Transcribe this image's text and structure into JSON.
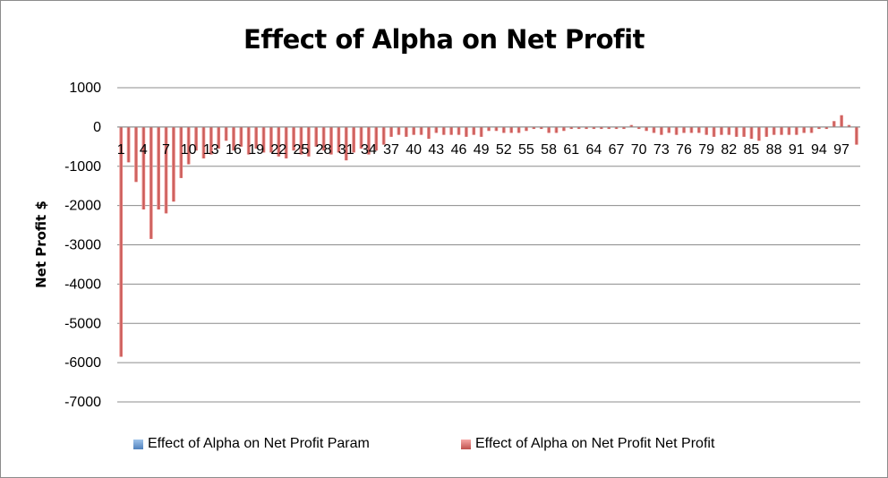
{
  "chart_data": {
    "type": "bar",
    "title": "Effect of Alpha on Net Profit",
    "ylabel": "Net Profit $",
    "xlabel": "",
    "ylim": [
      -7000,
      1000
    ],
    "yticks": [
      1000,
      0,
      -1000,
      -2000,
      -3000,
      -4000,
      -5000,
      -6000,
      -7000
    ],
    "categories": [
      1,
      2,
      3,
      4,
      5,
      6,
      7,
      8,
      9,
      10,
      11,
      12,
      13,
      14,
      15,
      16,
      17,
      18,
      19,
      20,
      21,
      22,
      23,
      24,
      25,
      26,
      27,
      28,
      29,
      30,
      31,
      32,
      33,
      34,
      35,
      36,
      37,
      38,
      39,
      40,
      41,
      42,
      43,
      44,
      45,
      46,
      47,
      48,
      49,
      50,
      51,
      52,
      53,
      54,
      55,
      56,
      57,
      58,
      59,
      60,
      61,
      62,
      63,
      64,
      65,
      66,
      67,
      68,
      69,
      70,
      71,
      72,
      73,
      74,
      75,
      76,
      77,
      78,
      79,
      80,
      81,
      82,
      83,
      84,
      85,
      86,
      87,
      88,
      89,
      90,
      91,
      92,
      93,
      94,
      95,
      96,
      97,
      98,
      99
    ],
    "xtick_labels": [
      "1",
      "4",
      "7",
      "10",
      "13",
      "16",
      "19",
      "22",
      "25",
      "28",
      "31",
      "34",
      "37",
      "40",
      "43",
      "46",
      "49",
      "52",
      "55",
      "58",
      "61",
      "64",
      "67",
      "70",
      "73",
      "76",
      "79",
      "82",
      "85",
      "88",
      "91",
      "94",
      "97"
    ],
    "grid": "horizontal",
    "legend_position": "bottom",
    "series": [
      {
        "name": "Effect of Alpha on Net Profit Param",
        "color": "#4f81bd",
        "values": [
          0.01,
          0.02,
          0.03,
          0.04,
          0.05,
          0.06,
          0.07,
          0.08,
          0.09,
          0.1,
          0.11,
          0.12,
          0.13,
          0.14,
          0.15,
          0.16,
          0.17,
          0.18,
          0.19,
          0.2,
          0.21,
          0.22,
          0.23,
          0.24,
          0.25,
          0.26,
          0.27,
          0.28,
          0.29,
          0.3,
          0.31,
          0.32,
          0.33,
          0.34,
          0.35,
          0.36,
          0.37,
          0.38,
          0.39,
          0.4,
          0.41,
          0.42,
          0.43,
          0.44,
          0.45,
          0.46,
          0.47,
          0.48,
          0.49,
          0.5,
          0.51,
          0.52,
          0.53,
          0.54,
          0.55,
          0.56,
          0.57,
          0.58,
          0.59,
          0.6,
          0.61,
          0.62,
          0.63,
          0.64,
          0.65,
          0.66,
          0.67,
          0.68,
          0.69,
          0.7,
          0.71,
          0.72,
          0.73,
          0.74,
          0.75,
          0.76,
          0.77,
          0.78,
          0.79,
          0.8,
          0.81,
          0.82,
          0.83,
          0.84,
          0.85,
          0.86,
          0.87,
          0.88,
          0.89,
          0.9,
          0.91,
          0.92,
          0.93,
          0.94,
          0.95,
          0.96,
          0.97,
          0.98,
          0.99
        ]
      },
      {
        "name": "Effect of Alpha on Net Profit Net Profit",
        "color": "#c0504d",
        "values": [
          -5850,
          -900,
          -1400,
          -2100,
          -2850,
          -2100,
          -2200,
          -1900,
          -1300,
          -950,
          -600,
          -800,
          -700,
          -550,
          -350,
          -600,
          -500,
          -700,
          -550,
          -650,
          -650,
          -750,
          -800,
          -600,
          -700,
          -750,
          -500,
          -600,
          -700,
          -650,
          -850,
          -650,
          -550,
          -700,
          -600,
          -450,
          -250,
          -200,
          -250,
          -200,
          -200,
          -300,
          -150,
          -200,
          -200,
          -200,
          -250,
          -200,
          -250,
          -100,
          -100,
          -150,
          -150,
          -150,
          -100,
          -50,
          -50,
          -150,
          -150,
          -100,
          -50,
          -50,
          -50,
          -50,
          -50,
          -50,
          -50,
          -50,
          50,
          -50,
          -100,
          -150,
          -200,
          -150,
          -200,
          -150,
          -150,
          -150,
          -200,
          -250,
          -200,
          -200,
          -250,
          -250,
          -300,
          -350,
          -250,
          -200,
          -200,
          -200,
          -200,
          -150,
          -150,
          -50,
          -50,
          150,
          300,
          50,
          -450
        ]
      }
    ]
  }
}
